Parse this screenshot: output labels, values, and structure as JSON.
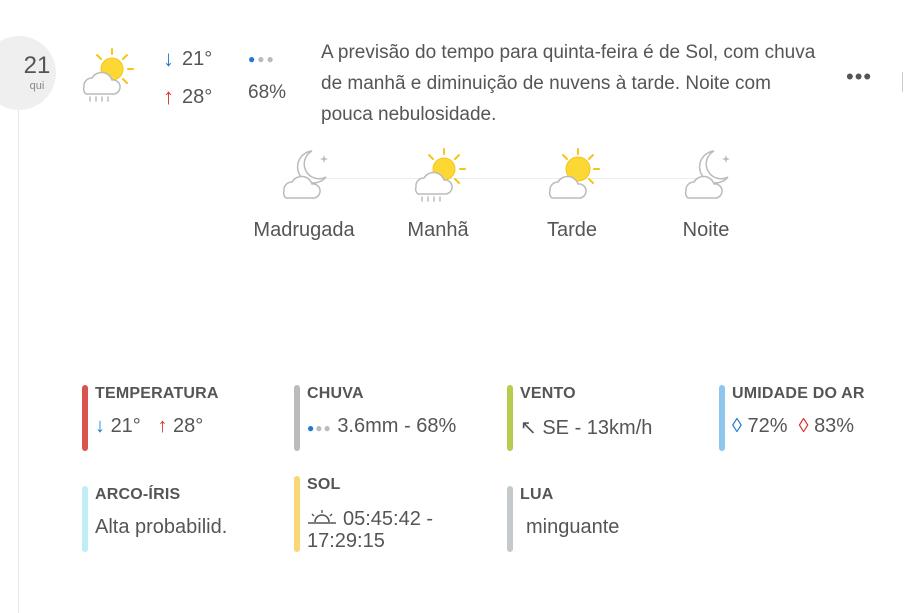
{
  "day": {
    "number": "21",
    "weekday": "qui"
  },
  "summary_row": {
    "min_temp": "21°",
    "max_temp": "28°",
    "rain_probability": "68%",
    "description": "A previsão do tempo para quinta-feira é de Sol, com chuva de manhã e diminuição de nuvens à tarde. Noite com pouca nebulosidade.",
    "more_label": "•••"
  },
  "periods": [
    {
      "label": "Madrugada",
      "icon": "moon-cloud-icon"
    },
    {
      "label": "Manhã",
      "icon": "sun-cloud-rain-icon"
    },
    {
      "label": "Tarde",
      "icon": "sun-cloud-icon"
    },
    {
      "label": "Noite",
      "icon": "moon-cloud-icon"
    }
  ],
  "stats": {
    "temperatura": {
      "title": "TEMPERATURA",
      "min": "21°",
      "max": "28°",
      "color": "#d9534f"
    },
    "chuva": {
      "title": "CHUVA",
      "value": "3.6mm - 68%",
      "color": "#bbbbbb"
    },
    "vento": {
      "title": "VENTO",
      "value": "SE - 13km/h",
      "color": "#b5cc4e"
    },
    "umidade": {
      "title": "UMIDADE DO AR",
      "min": "72%",
      "max": "83%",
      "color": "#8ec6ee"
    },
    "arco_iris": {
      "title": "ARCO-ÍRIS",
      "value": "Alta probabilid.",
      "color": "#bfeef5"
    },
    "sol": {
      "title": "SOL",
      "value": "05:45:42 - 17:29:15",
      "color": "#f8d774"
    },
    "lua": {
      "title": "LUA",
      "value": "minguante",
      "color": "#c4c9cc"
    }
  }
}
